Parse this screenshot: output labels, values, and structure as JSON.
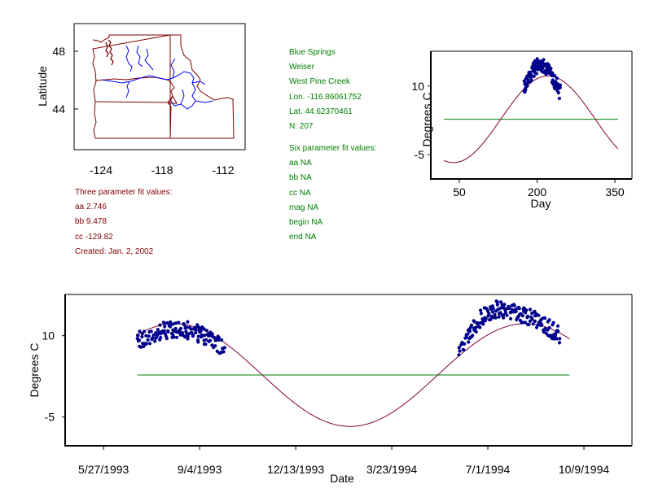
{
  "colors": {
    "data_points": "#00008b",
    "fit_curve": "#800040",
    "baseline": "#008000",
    "map_border": "#800000",
    "rivers": "#0000ff",
    "info_green": "#008000",
    "info_red": "#800000"
  },
  "map": {
    "ylabel": "Latitude",
    "y_ticks": [
      "48",
      "44"
    ],
    "x_ticks": [
      "-124",
      "-118",
      "-112"
    ]
  },
  "site_info": {
    "lines": [
      "Blue Springs",
      "Weiser",
      "West Pine Creek",
      "Lon. -116.86061752",
      "Lat. 44.62370461",
      "N: 207"
    ],
    "six_param_title": "Six parameter fit values:",
    "six_param_lines": [
      "aa NA",
      "bb NA",
      "cc NA",
      "mag NA",
      "begin NA",
      "end NA"
    ]
  },
  "three_param": {
    "title": "Three parameter fit values:",
    "lines": [
      "aa 2.746",
      "bb 9.478",
      "cc -129.82",
      "Created:   Jan. 2, 2002"
    ]
  },
  "chart_data": [
    {
      "type": "scatter",
      "name": "seasonal",
      "title": "",
      "xlabel": "Day",
      "ylabel": "Degrees C",
      "xlim": [
        -5,
        383
      ],
      "ylim": [
        -10.3,
        17.6
      ],
      "x_ticks": [
        50,
        200,
        350
      ],
      "x_tick_labels": [
        "50",
        "200",
        "350"
      ],
      "y_ticks": [
        10,
        -5
      ],
      "y_tick_labels": [
        "10",
        "-5"
      ],
      "fit": {
        "aa": 2.746,
        "bb": 9.478,
        "cc": -129.82,
        "x_range": [
          20,
          356
        ]
      },
      "baseline": {
        "y": 2.75,
        "x_range": [
          20,
          356
        ]
      },
      "clusters": [
        {
          "x_start": 175,
          "x_end": 245,
          "y_start": 9.5,
          "y_peak": 14.5,
          "y_end": 8.5,
          "peak_x": 205
        }
      ]
    },
    {
      "type": "scatter",
      "name": "timeseries",
      "title": "",
      "xlabel": "Date",
      "ylabel": "Degrees C",
      "xlim": [
        -40,
        550
      ],
      "ylim": [
        -10.3,
        17.6
      ],
      "x_ticks": [
        0,
        100,
        200,
        300,
        400,
        500
      ],
      "x_tick_labels": [
        "5/27/1993",
        "9/4/1993",
        "12/13/1993",
        "3/23/1994",
        "7/1/1994",
        "10/9/1994"
      ],
      "y_ticks": [
        10,
        -5
      ],
      "y_tick_labels": [
        "10",
        "-5"
      ],
      "fit": {
        "aa": 2.746,
        "bb": 9.478,
        "cc": -129.82,
        "x_range": [
          35,
          485
        ],
        "day_offset": 147
      },
      "baseline": {
        "y": 2.75,
        "x_range": [
          35,
          485
        ]
      },
      "clusters": [
        {
          "x_start": 35,
          "x_end": 126,
          "y_start": 9.0,
          "y_peak": 11.2,
          "y_end": 7.8,
          "peak_x": 75
        },
        {
          "x_start": 370,
          "x_end": 475,
          "y_start": 7.5,
          "y_peak": 14.8,
          "y_end": 10.2,
          "peak_x": 410
        }
      ]
    }
  ]
}
